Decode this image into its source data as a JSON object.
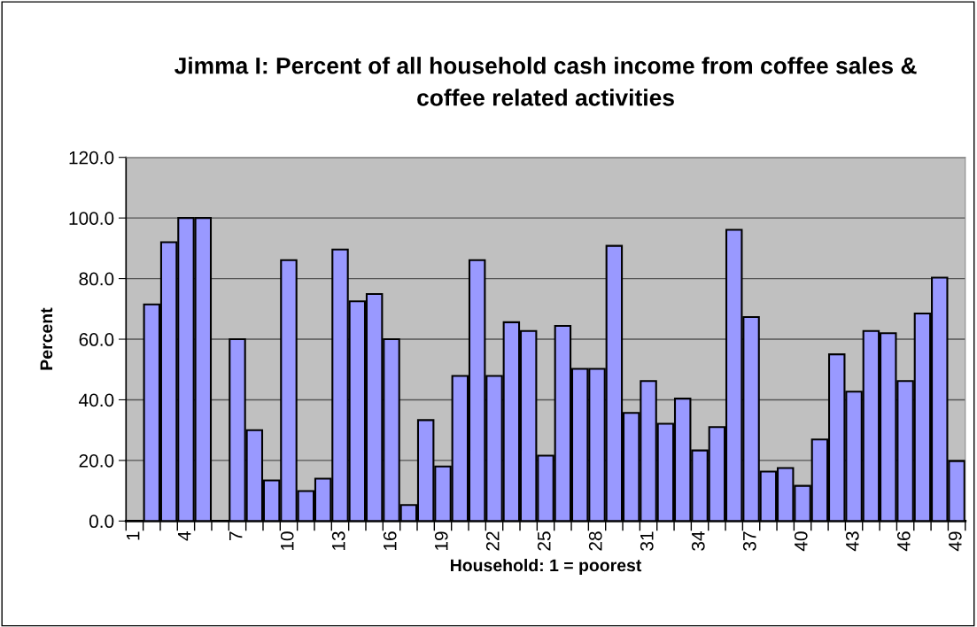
{
  "chart_data": {
    "type": "bar",
    "title": "Jimma I: Percent of all household cash income from coffee sales &\ncoffee related activities",
    "xlabel": "Household: 1 = poorest",
    "ylabel": "Percent",
    "categories": [
      "1",
      null,
      null,
      "4",
      null,
      null,
      "7",
      null,
      null,
      "10",
      null,
      null,
      "13",
      null,
      null,
      "16",
      null,
      null,
      "19",
      null,
      null,
      "22",
      null,
      null,
      "25",
      null,
      null,
      "28",
      null,
      null,
      "31",
      null,
      null,
      "34",
      null,
      null,
      "37",
      null,
      null,
      "40",
      null,
      null,
      "43",
      null,
      null,
      "46",
      null,
      null,
      "49"
    ],
    "values": [
      null,
      71.5,
      92,
      100,
      100,
      null,
      60,
      30,
      13.4,
      86.1,
      9.9,
      14,
      89.6,
      72.5,
      74.9,
      60,
      5.3,
      33.3,
      18,
      47.9,
      86.1,
      47.9,
      65.6,
      62.7,
      21.6,
      64.4,
      50.2,
      50.2,
      90.8,
      35.7,
      46.2,
      32.1,
      40.4,
      23.3,
      31,
      96.1,
      67.3,
      16.3,
      17.5,
      11.6,
      26.9,
      55,
      42.7,
      62.7,
      62,
      46.2,
      68.5,
      80.3,
      19.8
    ],
    "color": "#9999ff",
    "ylim": [
      0,
      120
    ],
    "yticks": [
      {
        "value": 0,
        "label": "0.0"
      },
      {
        "value": 20,
        "label": "20.0"
      },
      {
        "value": 40,
        "label": "40.0"
      },
      {
        "value": 60,
        "label": "60.0"
      },
      {
        "value": 80,
        "label": "80.0"
      },
      {
        "value": 100,
        "label": "100.0"
      },
      {
        "value": 120,
        "label": "120.0"
      }
    ],
    "grid": "y",
    "legend": false
  }
}
